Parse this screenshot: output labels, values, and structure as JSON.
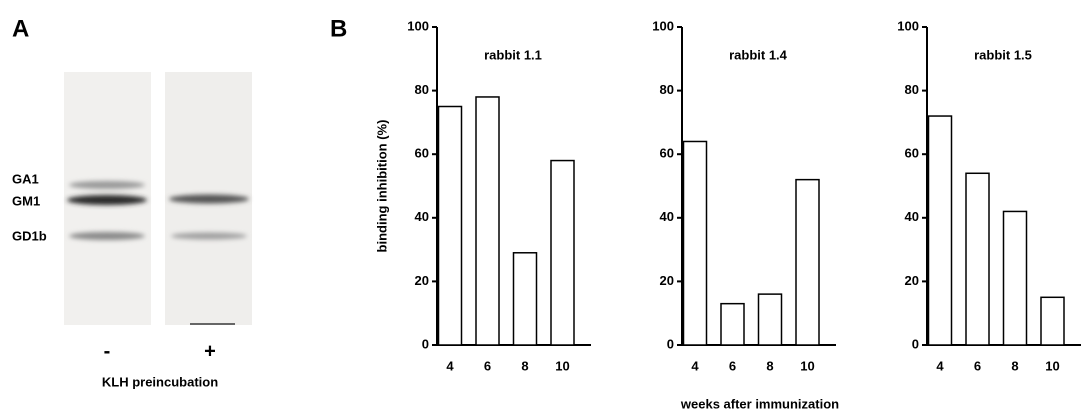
{
  "panel_a": {
    "label": "A",
    "bands": [
      "GA1",
      "GM1",
      "GD1b"
    ],
    "lanes": [
      "-",
      "+"
    ],
    "xlabel": "KLH preincubation"
  },
  "panel_b": {
    "label": "B",
    "xlabel": "weeks after immunization"
  },
  "chart_data": [
    {
      "type": "bar",
      "title": "rabbit 1.1",
      "ylabel": "binding inhibition (%)",
      "categories": [
        "4",
        "6",
        "8",
        "10"
      ],
      "values": [
        75,
        78,
        29,
        58
      ],
      "color": "#ffffff",
      "ylim": [
        0,
        100
      ],
      "yticks": [
        0,
        20,
        40,
        60,
        80,
        100
      ]
    },
    {
      "type": "bar",
      "title": "rabbit 1.4",
      "categories": [
        "4",
        "6",
        "8",
        "10"
      ],
      "values": [
        64,
        13,
        16,
        52
      ],
      "color": "#ffffff",
      "ylim": [
        0,
        100
      ],
      "yticks": [
        0,
        20,
        40,
        60,
        80,
        100
      ]
    },
    {
      "type": "bar",
      "title": "rabbit 1.5",
      "categories": [
        "4",
        "6",
        "8",
        "10"
      ],
      "values": [
        72,
        54,
        42,
        15
      ],
      "color": "#ffffff",
      "ylim": [
        0,
        100
      ],
      "yticks": [
        0,
        20,
        40,
        60,
        80,
        100
      ]
    }
  ]
}
